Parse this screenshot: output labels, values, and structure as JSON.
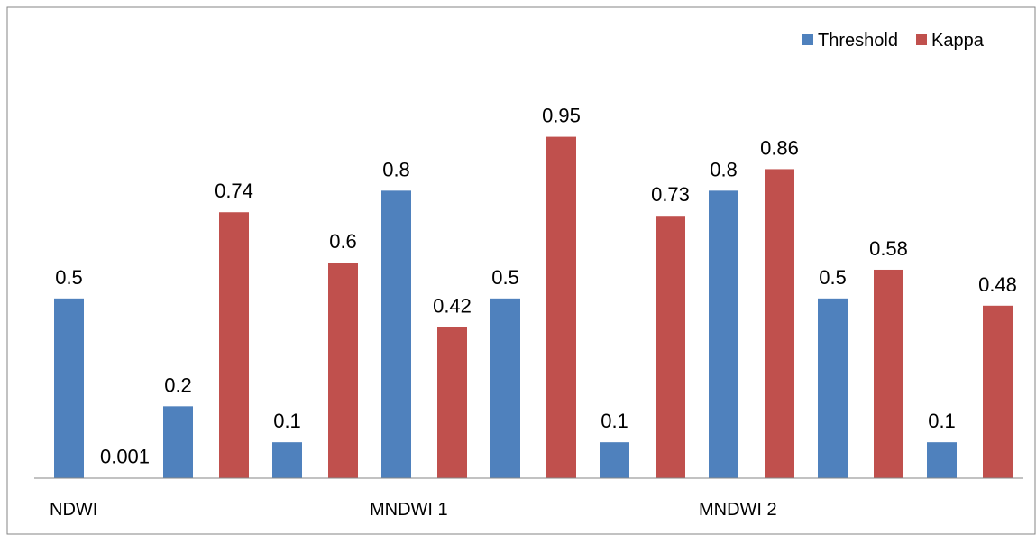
{
  "chart_data": {
    "type": "bar",
    "title": "",
    "xlabel": "",
    "ylabel": "",
    "ylim": [
      0,
      1.0
    ],
    "grid": false,
    "legend_position": "top-right",
    "groups": [
      "NDWI",
      "MNDWI 1",
      "MNDWI 2"
    ],
    "series": [
      {
        "name": "Threshold",
        "color": "#4F81BD",
        "values": [
          0.5,
          0.2,
          0.1,
          0.8,
          0.5,
          0.1,
          0.8,
          0.5,
          0.1
        ],
        "labels": [
          "0.5",
          "0.2",
          "0.1",
          "0.8",
          "0.5",
          "0.1",
          "0.8",
          "0.5",
          "0.1"
        ]
      },
      {
        "name": "Kappa",
        "color": "#C0504D",
        "values": [
          0.001,
          0.74,
          0.6,
          0.42,
          0.95,
          0.73,
          0.86,
          0.58,
          0.48
        ],
        "labels": [
          "0.001",
          "0.74",
          "0.6",
          "0.42",
          "0.95",
          "0.73",
          "0.86",
          "0.58",
          "0.48"
        ]
      }
    ]
  }
}
